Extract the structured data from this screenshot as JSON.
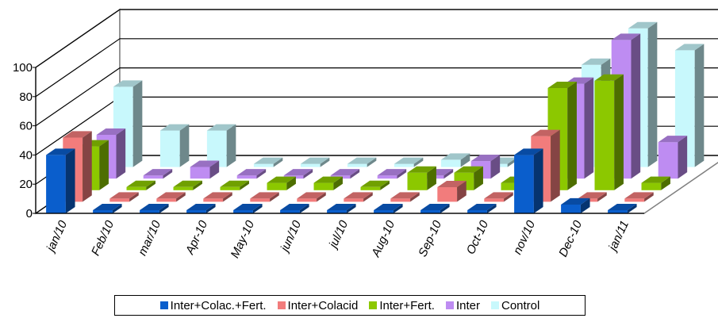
{
  "chart_data": {
    "type": "bar",
    "categories": [
      "jan/10",
      "Feb/10",
      "mar/10",
      "Apr-10",
      "May-10",
      "jun/10",
      "jul/10",
      "Aug-10",
      "Sep-10",
      "Oct-10",
      "nov/10",
      "Dec-10",
      "jan/11"
    ],
    "y_ticks": [
      "0",
      "20",
      "40",
      "60",
      "80",
      "100"
    ],
    "ylim": [
      0,
      100
    ],
    "grid": true,
    "legend_position": "bottom",
    "series": [
      {
        "name": "Inter+Colac.+Fert.",
        "color": "#0A5ECC",
        "values": [
          40,
          0,
          0,
          0,
          0,
          0,
          0,
          0,
          0,
          0,
          40,
          6,
          0
        ]
      },
      {
        "name": "Inter+Colacid",
        "color": "#F27C7C",
        "values": [
          44,
          0,
          0,
          0,
          0,
          0,
          0,
          0,
          10,
          0,
          45,
          0,
          0
        ]
      },
      {
        "name": "Inter+Fert.",
        "color": "#8CC800",
        "values": [
          30,
          0,
          0,
          0,
          5,
          5,
          0,
          12,
          12,
          5,
          70,
          75,
          5
        ]
      },
      {
        "name": "Inter",
        "color": "#BE8CF2",
        "values": [
          30,
          0,
          8,
          0,
          0,
          0,
          0,
          0,
          12,
          0,
          65,
          95,
          25
        ]
      },
      {
        "name": "Control",
        "color": "#C8F8FC",
        "values": [
          55,
          25,
          25,
          0,
          0,
          0,
          0,
          5,
          0,
          15,
          70,
          95,
          80
        ]
      }
    ]
  }
}
